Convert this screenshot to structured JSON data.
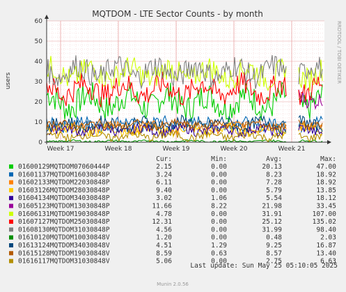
{
  "chart_data": {
    "type": "line",
    "title": "MQTDOM - LTE Sector Counts - by month",
    "ylabel": "users",
    "ylim": [
      0,
      60
    ],
    "yticks": [
      "0",
      "10",
      "20",
      "30",
      "40",
      "50",
      "60"
    ],
    "xticks": [
      "Week 17",
      "Week 18",
      "Week 19",
      "Week 20",
      "Week 21"
    ],
    "grid": true,
    "side_label": "RRDTOOL / TOBI OETIKER",
    "legend_headers": {
      "cur": "Cur:",
      "min": "Min:",
      "avg": "Avg:",
      "max": "Max:"
    },
    "series": [
      {
        "name": "01600129MQTDOM07060444P",
        "color": "#00cc00",
        "cur": "2.15",
        "min": "0.00",
        "avg": "20.13",
        "max": "47.00",
        "base": 20,
        "amp": 7
      },
      {
        "name": "01601137MQTDOM16030848P",
        "color": "#0066b3",
        "cur": "3.24",
        "min": "0.00",
        "avg": "8.23",
        "max": "18.92",
        "base": 9,
        "amp": 3
      },
      {
        "name": "01602133MQTDOM22030848P",
        "color": "#ff8000",
        "cur": "6.11",
        "min": "0.00",
        "avg": "7.28",
        "max": "18.92",
        "base": 7.5,
        "amp": 2.5
      },
      {
        "name": "01603126MQTDOM28030848P",
        "color": "#ffcc00",
        "cur": "9.40",
        "min": "0.00",
        "avg": "5.79",
        "max": "13.85",
        "base": 6,
        "amp": 2.5
      },
      {
        "name": "01604134MQTDOM34030848P",
        "color": "#330099",
        "cur": "3.02",
        "min": "1.06",
        "avg": "5.54",
        "max": "18.12",
        "base": 6,
        "amp": 2.5
      },
      {
        "name": "01605123MQTDOM13030848P",
        "color": "#990099",
        "cur": "11.66",
        "min": "8.22",
        "avg": "21.98",
        "max": "33.45",
        "base": 22,
        "amp": 4
      },
      {
        "name": "01606131MQTDOM19030848P",
        "color": "#ccff00",
        "cur": "4.78",
        "min": "0.00",
        "avg": "31.91",
        "max": "107.00",
        "base": 34,
        "amp": 6
      },
      {
        "name": "01607127MQTDOM25030848P",
        "color": "#ff0000",
        "cur": "12.31",
        "min": "0.00",
        "avg": "25.12",
        "max": "135.02",
        "base": 26,
        "amp": 6
      },
      {
        "name": "01608130MQTDOM31030848P",
        "color": "#808080",
        "cur": "4.56",
        "min": "0.00",
        "avg": "31.99",
        "max": "98.40",
        "base": 35,
        "amp": 6
      },
      {
        "name": "01610120MQTDOM10030848V",
        "color": "#008f00",
        "cur": "1.20",
        "min": "0.00",
        "avg": "0.48",
        "max": "2.03",
        "base": 0.5,
        "amp": 0.5
      },
      {
        "name": "01613124MQTDOM34030848V",
        "color": "#00487d",
        "cur": "4.51",
        "min": "1.29",
        "avg": "9.25",
        "max": "16.87",
        "base": 9,
        "amp": 3
      },
      {
        "name": "01615128MQTDOM19030848V",
        "color": "#b35a00",
        "cur": "8.59",
        "min": "0.63",
        "avg": "8.57",
        "max": "13.40",
        "base": 8.5,
        "amp": 2
      },
      {
        "name": "01616117MQTDOM31030848V",
        "color": "#b38f00",
        "cur": "5.06",
        "min": "0.00",
        "avg": "2.75",
        "max": "6.63",
        "base": 3,
        "amp": 2
      }
    ]
  },
  "footer": {
    "last_update": "Last update: Sun May 25 05:10:05 2025",
    "munin": "Munin 2.0.56"
  }
}
